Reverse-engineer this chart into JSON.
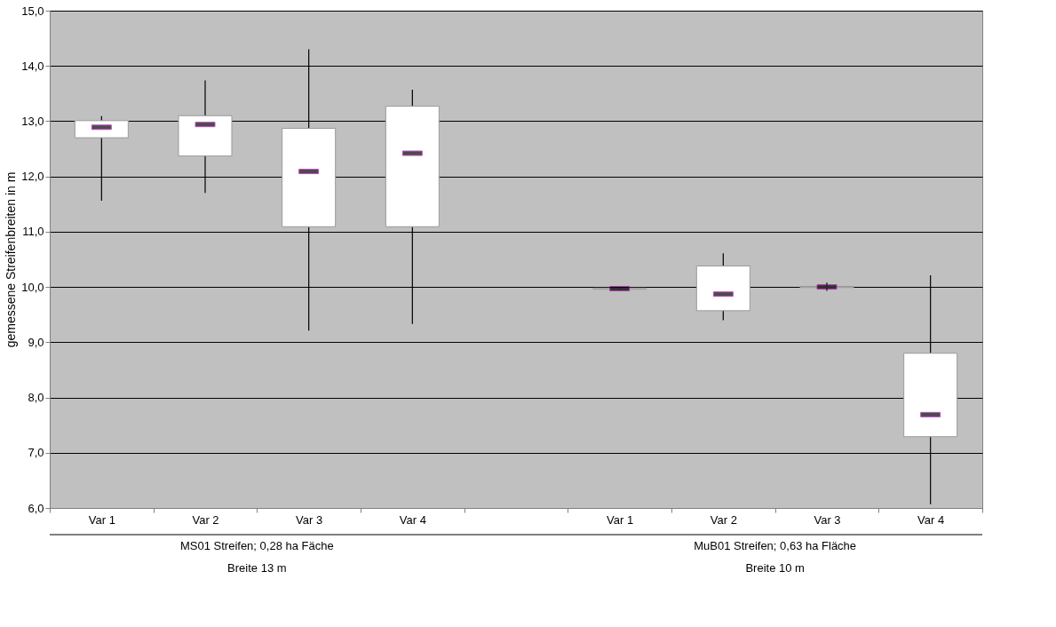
{
  "chart_data": {
    "type": "box",
    "ylabel": "gemessene Streifenbreiten in m",
    "categories": [
      "Var 1",
      "Var 2",
      "Var 3",
      "Var 4",
      null,
      "Var 1",
      "Var 2",
      "Var 3",
      "Var 4"
    ],
    "boxes": [
      {
        "low": 11.56,
        "q1": 12.7,
        "median": 12.89,
        "q3": 13.01,
        "high": 13.09
      },
      {
        "low": 11.7,
        "q1": 12.37,
        "median": 12.94,
        "q3": 13.1,
        "high": 13.74
      },
      {
        "low": 9.21,
        "q1": 11.09,
        "median": 12.09,
        "q3": 12.87,
        "high": 14.3
      },
      {
        "low": 9.33,
        "q1": 11.09,
        "median": 12.42,
        "q3": 13.27,
        "high": 13.57
      },
      null,
      {
        "low": 9.95,
        "q1": 9.96,
        "median": 9.97,
        "q3": 9.98,
        "high": 10.0
      },
      {
        "low": 9.4,
        "q1": 9.57,
        "median": 9.87,
        "q3": 10.38,
        "high": 10.61
      },
      {
        "low": 9.93,
        "q1": 9.99,
        "median": 10.0,
        "q3": 10.01,
        "high": 10.08
      },
      {
        "low": 6.07,
        "q1": 7.29,
        "median": 7.69,
        "q3": 8.8,
        "high": 10.21
      }
    ],
    "color": "#ffffff",
    "ylim": [
      6,
      15
    ],
    "yticks": [
      {
        "value": 6,
        "label": "6,0"
      },
      {
        "value": 7,
        "label": "7,0"
      },
      {
        "value": 8,
        "label": "8,0"
      },
      {
        "value": 9,
        "label": "9,0"
      },
      {
        "value": 10,
        "label": "10,0"
      },
      {
        "value": 11,
        "label": "11,0"
      },
      {
        "value": 12,
        "label": "12,0"
      },
      {
        "value": 13,
        "label": "13,0"
      },
      {
        "value": 14,
        "label": "14,0"
      },
      {
        "value": 15,
        "label": "15,0"
      }
    ],
    "grid": "y",
    "annotations": [
      "MS01 Streifen; 0,28 ha Fäche",
      "Breite  13 m",
      "MuB01 Streifen; 0,63 ha Fläche",
      "Breite  10 m"
    ]
  }
}
